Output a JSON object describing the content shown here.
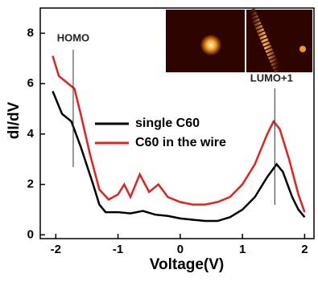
{
  "chart_data": {
    "type": "line",
    "xlabel": "Voltage(V)",
    "ylabel": "dI/dV",
    "xlim": [
      -2.25,
      2.15
    ],
    "ylim": [
      -0.15,
      9
    ],
    "xticks": [
      -2,
      -1,
      0,
      1,
      2
    ],
    "yticks": [
      0,
      2,
      4,
      6,
      8
    ],
    "series": [
      {
        "name": "single C60",
        "color": "#000000",
        "x": [
          -2.05,
          -1.9,
          -1.75,
          -1.6,
          -1.4,
          -1.3,
          -1.2,
          -1.0,
          -0.8,
          -0.6,
          -0.4,
          -0.2,
          0,
          0.2,
          0.4,
          0.6,
          0.8,
          1.0,
          1.2,
          1.4,
          1.55,
          1.65,
          1.8,
          1.9,
          2.0
        ],
        "values": [
          5.7,
          4.8,
          4.5,
          3.5,
          2.0,
          1.2,
          0.9,
          0.9,
          0.85,
          0.95,
          0.8,
          0.75,
          0.65,
          0.6,
          0.55,
          0.55,
          0.7,
          1.0,
          1.5,
          2.3,
          2.8,
          2.5,
          1.5,
          1.0,
          0.7
        ]
      },
      {
        "name": "C60 in the wire",
        "color": "#e8201c",
        "x": [
          -2.05,
          -1.95,
          -1.8,
          -1.7,
          -1.6,
          -1.45,
          -1.3,
          -1.15,
          -1.0,
          -0.9,
          -0.8,
          -0.65,
          -0.5,
          -0.35,
          -0.2,
          0,
          0.2,
          0.4,
          0.6,
          0.8,
          1.0,
          1.2,
          1.4,
          1.5,
          1.6,
          1.75,
          1.9,
          2.0
        ],
        "values": [
          7.1,
          6.3,
          6.0,
          5.8,
          4.8,
          3.2,
          1.8,
          1.4,
          1.6,
          2.0,
          1.5,
          2.4,
          1.7,
          2.0,
          1.5,
          1.3,
          1.2,
          1.2,
          1.3,
          1.5,
          2.0,
          2.8,
          4.0,
          4.5,
          4.2,
          3.0,
          1.6,
          0.9
        ]
      }
    ],
    "annotations": [
      {
        "text": "HOMO",
        "x": -1.72
      },
      {
        "text": "LUMO+1",
        "x": 1.52
      }
    ]
  }
}
